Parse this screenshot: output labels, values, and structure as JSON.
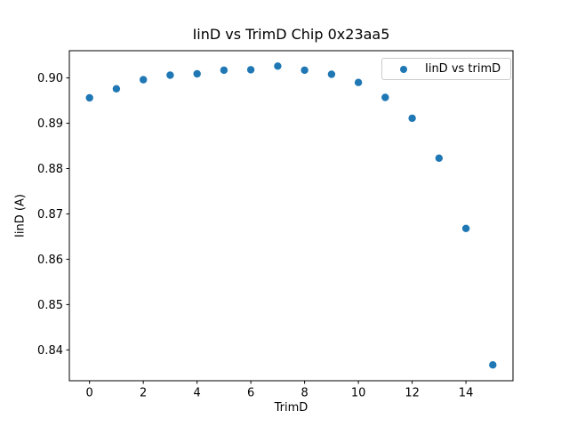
{
  "window": {
    "background": "#ffffff"
  },
  "chart_data": {
    "type": "scatter",
    "title": "IinD vs TrimD Chip 0x23aa5",
    "xlabel": "TrimD",
    "ylabel": "IinD (A)",
    "series": [
      {
        "name": "IinD vs trimD",
        "marker": "circle",
        "color": "#1f77b4",
        "x": [
          0,
          1,
          2,
          3,
          4,
          5,
          6,
          7,
          8,
          9,
          10,
          11,
          12,
          13,
          14,
          15
        ],
        "y": [
          0.8956,
          0.8976,
          0.8996,
          0.9006,
          0.9009,
          0.9017,
          0.9018,
          0.9026,
          0.9017,
          0.9008,
          0.899,
          0.8957,
          0.8911,
          0.8823,
          0.8668,
          0.8367
        ]
      }
    ],
    "xlim": [
      -0.75,
      15.75
    ],
    "ylim": [
      0.8332,
      0.906
    ],
    "xticks": [
      0,
      2,
      4,
      6,
      8,
      10,
      12,
      14
    ],
    "xtick_labels": [
      "0",
      "2",
      "4",
      "6",
      "8",
      "10",
      "12",
      "14"
    ],
    "yticks": [
      0.84,
      0.85,
      0.86,
      0.87,
      0.88,
      0.89,
      0.9
    ],
    "ytick_labels": [
      "0.84",
      "0.85",
      "0.86",
      "0.87",
      "0.88",
      "0.89",
      "0.90"
    ],
    "grid": false,
    "legend": {
      "label": "IinD vs trimD",
      "position": "upper right"
    },
    "axis_color": "#000000",
    "legend_border_color": "#cccccc"
  }
}
